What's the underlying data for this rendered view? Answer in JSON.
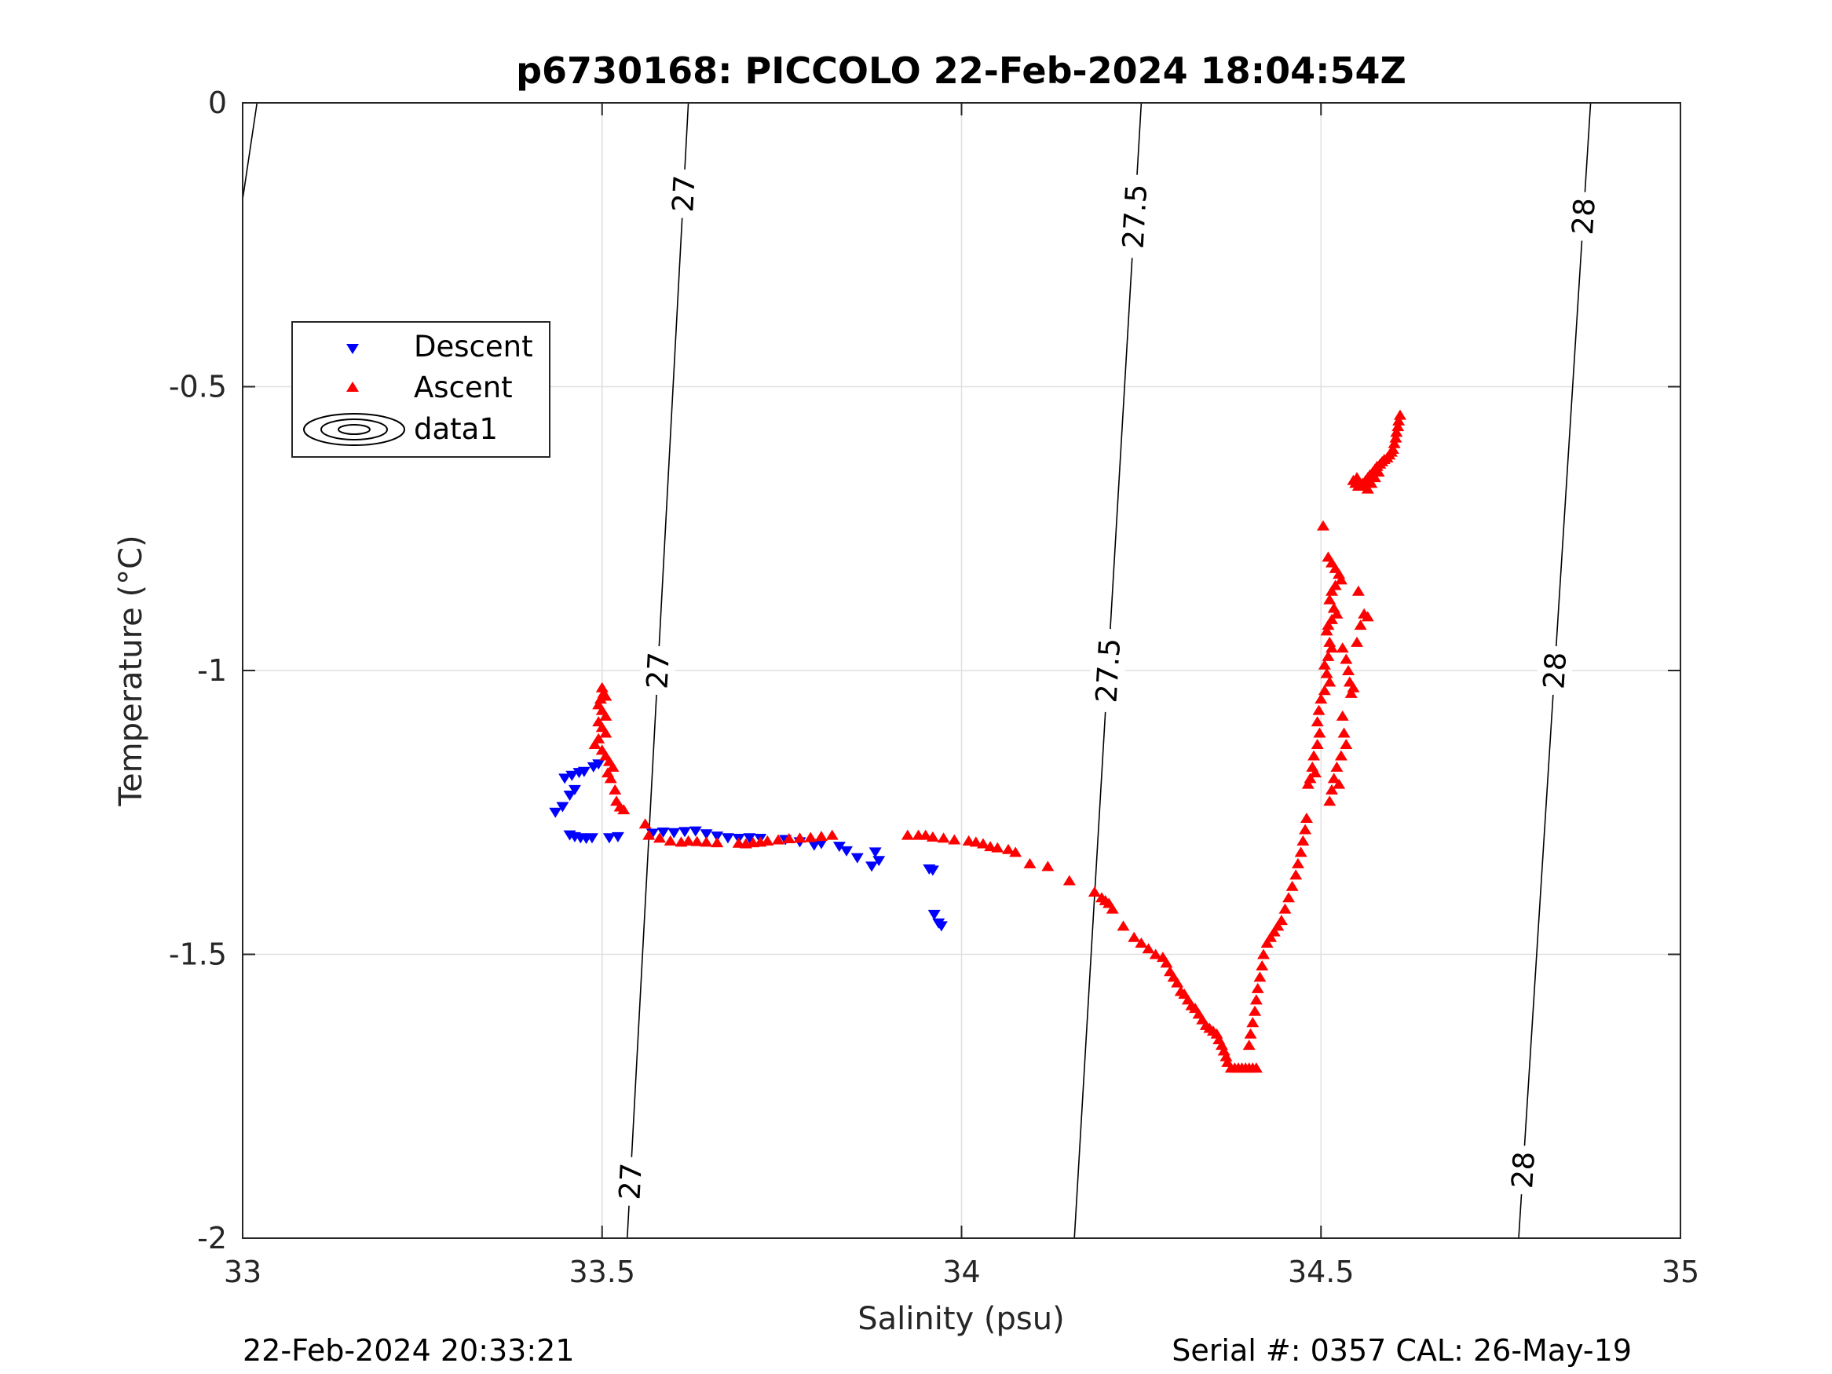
{
  "chart_data": {
    "type": "scatter",
    "title": "p6730168: PICCOLO 22-Feb-2024 18:04:54Z",
    "xlabel": "Salinity (psu)",
    "ylabel": "Temperature (°C)",
    "xlim": [
      33,
      35
    ],
    "ylim": [
      -2,
      0
    ],
    "xticks": [
      33,
      33.5,
      34,
      34.5,
      35
    ],
    "xtick_labels": [
      "33",
      "33.5",
      "34",
      "34.5",
      "35"
    ],
    "yticks": [
      0,
      -0.5,
      -1,
      -1.5,
      -2
    ],
    "ytick_labels": [
      "0",
      "-0.5",
      "-1",
      "-1.5",
      "-2"
    ],
    "grid": true,
    "legend": {
      "placement": "upper-left",
      "entries": [
        "Descent",
        "Ascent",
        "data1"
      ]
    },
    "colors": {
      "descent": "#0000ff",
      "ascent": "#ff0000",
      "contour": "#000000"
    },
    "series": [
      {
        "name": "Descent",
        "marker": "triangle-down",
        "points": [
          [
            33.435,
            -1.25
          ],
          [
            33.445,
            -1.24
          ],
          [
            33.455,
            -1.22
          ],
          [
            33.462,
            -1.21
          ],
          [
            33.448,
            -1.19
          ],
          [
            33.458,
            -1.185
          ],
          [
            33.468,
            -1.18
          ],
          [
            33.475,
            -1.178
          ],
          [
            33.488,
            -1.17
          ],
          [
            33.495,
            -1.165
          ],
          [
            33.455,
            -1.29
          ],
          [
            33.462,
            -1.293
          ],
          [
            33.47,
            -1.295
          ],
          [
            33.478,
            -1.296
          ],
          [
            33.486,
            -1.295
          ],
          [
            33.51,
            -1.295
          ],
          [
            33.522,
            -1.293
          ],
          [
            33.57,
            -1.287
          ],
          [
            33.585,
            -1.285
          ],
          [
            33.6,
            -1.286
          ],
          [
            33.615,
            -1.284
          ],
          [
            33.63,
            -1.283
          ],
          [
            33.645,
            -1.288
          ],
          [
            33.66,
            -1.292
          ],
          [
            33.675,
            -1.295
          ],
          [
            33.69,
            -1.296
          ],
          [
            33.705,
            -1.295
          ],
          [
            33.72,
            -1.296
          ],
          [
            33.755,
            -1.298
          ],
          [
            33.775,
            -1.302
          ],
          [
            33.795,
            -1.308
          ],
          [
            33.805,
            -1.305
          ],
          [
            33.83,
            -1.31
          ],
          [
            33.84,
            -1.318
          ],
          [
            33.855,
            -1.33
          ],
          [
            33.88,
            -1.32
          ],
          [
            33.885,
            -1.335
          ],
          [
            33.875,
            -1.345
          ],
          [
            33.955,
            -1.35
          ],
          [
            33.96,
            -1.352
          ],
          [
            33.962,
            -1.43
          ],
          [
            33.968,
            -1.445
          ],
          [
            33.972,
            -1.45
          ]
        ]
      },
      {
        "name": "Ascent",
        "marker": "triangle-up",
        "points": [
          [
            34.61,
            -0.55
          ],
          [
            34.608,
            -0.56
          ],
          [
            34.607,
            -0.57
          ],
          [
            34.605,
            -0.58
          ],
          [
            34.604,
            -0.59
          ],
          [
            34.602,
            -0.6
          ],
          [
            34.6,
            -0.61
          ],
          [
            34.598,
            -0.615
          ],
          [
            34.595,
            -0.62
          ],
          [
            34.592,
            -0.625
          ],
          [
            34.588,
            -0.628
          ],
          [
            34.585,
            -0.632
          ],
          [
            34.582,
            -0.636
          ],
          [
            34.578,
            -0.64
          ],
          [
            34.575,
            -0.645
          ],
          [
            34.572,
            -0.65
          ],
          [
            34.568,
            -0.655
          ],
          [
            34.565,
            -0.66
          ],
          [
            34.562,
            -0.665
          ],
          [
            34.558,
            -0.67
          ],
          [
            34.555,
            -0.675
          ],
          [
            34.552,
            -0.675
          ],
          [
            34.548,
            -0.67
          ],
          [
            34.545,
            -0.665
          ],
          [
            34.55,
            -0.66
          ],
          [
            34.56,
            -0.675
          ],
          [
            34.565,
            -0.68
          ],
          [
            34.57,
            -0.67
          ],
          [
            34.575,
            -0.66
          ],
          [
            34.58,
            -0.65
          ],
          [
            34.503,
            -0.745
          ],
          [
            34.51,
            -0.8
          ],
          [
            34.515,
            -0.81
          ],
          [
            34.52,
            -0.82
          ],
          [
            34.525,
            -0.83
          ],
          [
            34.528,
            -0.84
          ],
          [
            34.52,
            -0.85
          ],
          [
            34.515,
            -0.86
          ],
          [
            34.512,
            -0.875
          ],
          [
            34.518,
            -0.89
          ],
          [
            34.522,
            -0.9
          ],
          [
            34.515,
            -0.91
          ],
          [
            34.51,
            -0.92
          ],
          [
            34.508,
            -0.93
          ],
          [
            34.512,
            -0.95
          ],
          [
            34.515,
            -0.96
          ],
          [
            34.51,
            -0.975
          ],
          [
            34.505,
            -0.99
          ],
          [
            34.508,
            -1.005
          ],
          [
            34.512,
            -1.02
          ],
          [
            34.505,
            -1.035
          ],
          [
            34.5,
            -1.05
          ],
          [
            34.497,
            -1.07
          ],
          [
            34.495,
            -1.09
          ],
          [
            34.498,
            -1.11
          ],
          [
            34.495,
            -1.13
          ],
          [
            34.49,
            -1.15
          ],
          [
            34.488,
            -1.17
          ],
          [
            34.492,
            -1.18
          ],
          [
            34.485,
            -1.19
          ],
          [
            34.482,
            -1.2
          ],
          [
            34.53,
            -0.96
          ],
          [
            34.535,
            -0.98
          ],
          [
            34.538,
            -1.0
          ],
          [
            34.54,
            -1.02
          ],
          [
            34.542,
            -1.04
          ],
          [
            34.545,
            -1.03
          ],
          [
            34.55,
            -0.95
          ],
          [
            34.555,
            -0.92
          ],
          [
            34.56,
            -0.9
          ],
          [
            34.565,
            -0.905
          ],
          [
            34.552,
            -0.86
          ],
          [
            34.53,
            -1.08
          ],
          [
            34.532,
            -1.11
          ],
          [
            34.535,
            -1.13
          ],
          [
            34.528,
            -1.15
          ],
          [
            34.522,
            -1.17
          ],
          [
            34.518,
            -1.19
          ],
          [
            34.515,
            -1.21
          ],
          [
            34.512,
            -1.23
          ],
          [
            34.525,
            -1.2
          ],
          [
            34.48,
            -1.26
          ],
          [
            34.478,
            -1.28
          ],
          [
            34.475,
            -1.3
          ],
          [
            34.472,
            -1.32
          ],
          [
            34.468,
            -1.34
          ],
          [
            34.465,
            -1.36
          ],
          [
            34.46,
            -1.38
          ],
          [
            34.455,
            -1.4
          ],
          [
            34.45,
            -1.42
          ],
          [
            34.445,
            -1.44
          ],
          [
            34.44,
            -1.45
          ],
          [
            34.435,
            -1.46
          ],
          [
            34.43,
            -1.47
          ],
          [
            34.425,
            -1.48
          ],
          [
            34.42,
            -1.5
          ],
          [
            34.418,
            -1.52
          ],
          [
            34.415,
            -1.54
          ],
          [
            34.412,
            -1.56
          ],
          [
            34.41,
            -1.58
          ],
          [
            34.408,
            -1.6
          ],
          [
            34.405,
            -1.62
          ],
          [
            34.402,
            -1.64
          ],
          [
            34.4,
            -1.66
          ],
          [
            34.41,
            -1.7
          ],
          [
            34.405,
            -1.7
          ],
          [
            34.4,
            -1.7
          ],
          [
            34.395,
            -1.7
          ],
          [
            34.39,
            -1.7
          ],
          [
            34.385,
            -1.7
          ],
          [
            34.38,
            -1.7
          ],
          [
            34.375,
            -1.7
          ],
          [
            34.37,
            -1.69
          ],
          [
            34.368,
            -1.68
          ],
          [
            34.365,
            -1.67
          ],
          [
            34.362,
            -1.66
          ],
          [
            34.358,
            -1.65
          ],
          [
            34.355,
            -1.64
          ],
          [
            34.35,
            -1.635
          ],
          [
            34.345,
            -1.63
          ],
          [
            34.34,
            -1.625
          ],
          [
            34.335,
            -1.615
          ],
          [
            34.33,
            -1.605
          ],
          [
            34.325,
            -1.595
          ],
          [
            34.32,
            -1.59
          ],
          [
            34.315,
            -1.58
          ],
          [
            34.31,
            -1.57
          ],
          [
            34.305,
            -1.565
          ],
          [
            34.3,
            -1.55
          ],
          [
            34.295,
            -1.54
          ],
          [
            34.29,
            -1.53
          ],
          [
            34.285,
            -1.515
          ],
          [
            34.28,
            -1.505
          ],
          [
            34.27,
            -1.5
          ],
          [
            34.26,
            -1.49
          ],
          [
            34.25,
            -1.48
          ],
          [
            34.24,
            -1.47
          ],
          [
            34.225,
            -1.45
          ],
          [
            34.21,
            -1.42
          ],
          [
            34.205,
            -1.41
          ],
          [
            34.2,
            -1.405
          ],
          [
            34.195,
            -1.4
          ],
          [
            34.185,
            -1.39
          ],
          [
            34.15,
            -1.37
          ],
          [
            34.12,
            -1.345
          ],
          [
            34.095,
            -1.34
          ],
          [
            34.075,
            -1.32
          ],
          [
            34.065,
            -1.315
          ],
          [
            34.05,
            -1.312
          ],
          [
            34.04,
            -1.31
          ],
          [
            34.03,
            -1.305
          ],
          [
            34.02,
            -1.302
          ],
          [
            34.01,
            -1.3
          ],
          [
            33.99,
            -1.298
          ],
          [
            33.975,
            -1.295
          ],
          [
            33.96,
            -1.293
          ],
          [
            33.95,
            -1.29
          ],
          [
            33.94,
            -1.29
          ],
          [
            33.925,
            -1.29
          ],
          [
            33.82,
            -1.29
          ],
          [
            33.805,
            -1.292
          ],
          [
            33.79,
            -1.294
          ],
          [
            33.775,
            -1.295
          ],
          [
            33.76,
            -1.296
          ],
          [
            33.745,
            -1.298
          ],
          [
            33.73,
            -1.3
          ],
          [
            33.72,
            -1.302
          ],
          [
            33.71,
            -1.303
          ],
          [
            33.7,
            -1.305
          ],
          [
            33.69,
            -1.304
          ],
          [
            33.66,
            -1.303
          ],
          [
            33.645,
            -1.302
          ],
          [
            33.632,
            -1.301
          ],
          [
            33.62,
            -1.3
          ],
          [
            33.61,
            -1.302
          ],
          [
            33.595,
            -1.3
          ],
          [
            33.58,
            -1.295
          ],
          [
            33.565,
            -1.29
          ],
          [
            33.56,
            -1.27
          ],
          [
            33.5,
            -1.03
          ],
          [
            33.502,
            -1.04
          ],
          [
            33.505,
            -1.045
          ],
          [
            33.498,
            -1.05
          ],
          [
            33.495,
            -1.06
          ],
          [
            33.5,
            -1.07
          ],
          [
            33.505,
            -1.08
          ],
          [
            33.495,
            -1.09
          ],
          [
            33.5,
            -1.1
          ],
          [
            33.505,
            -1.11
          ],
          [
            33.495,
            -1.12
          ],
          [
            33.49,
            -1.13
          ],
          [
            33.5,
            -1.14
          ],
          [
            33.505,
            -1.15
          ],
          [
            33.51,
            -1.16
          ],
          [
            33.515,
            -1.17
          ],
          [
            33.508,
            -1.18
          ],
          [
            33.512,
            -1.19
          ],
          [
            33.518,
            -1.21
          ],
          [
            33.52,
            -1.23
          ],
          [
            33.525,
            -1.24
          ],
          [
            33.53,
            -1.245
          ]
        ]
      }
    ],
    "contours": [
      {
        "name": "data1",
        "lines": [
          {
            "points": [
              [
                33.0,
                -0.17
              ],
              [
                33.02,
                0.0
              ]
            ],
            "labels": []
          },
          {
            "points": [
              [
                33.535,
                -2.0
              ],
              [
                33.62,
                0.0
              ]
            ],
            "labels": [
              {
                "text": "27",
                "t": 0.92
              },
              {
                "text": "27",
                "t": 0.5
              },
              {
                "text": "27",
                "t": 0.05
              }
            ]
          },
          {
            "points": [
              [
                34.157,
                -2.0
              ],
              [
                34.25,
                0.0
              ]
            ],
            "labels": [
              {
                "text": "27.5",
                "t": 0.9
              },
              {
                "text": "27.5",
                "t": 0.5
              }
            ]
          },
          {
            "points": [
              [
                34.775,
                -2.0
              ],
              [
                34.875,
                0.0
              ]
            ],
            "labels": [
              {
                "text": "28",
                "t": 0.9
              },
              {
                "text": "28",
                "t": 0.5
              },
              {
                "text": "28",
                "t": 0.06
              }
            ]
          }
        ]
      }
    ]
  },
  "footer": {
    "left": "22-Feb-2024 20:33:21",
    "right": "Serial #: 0357  CAL: 26-May-19"
  }
}
